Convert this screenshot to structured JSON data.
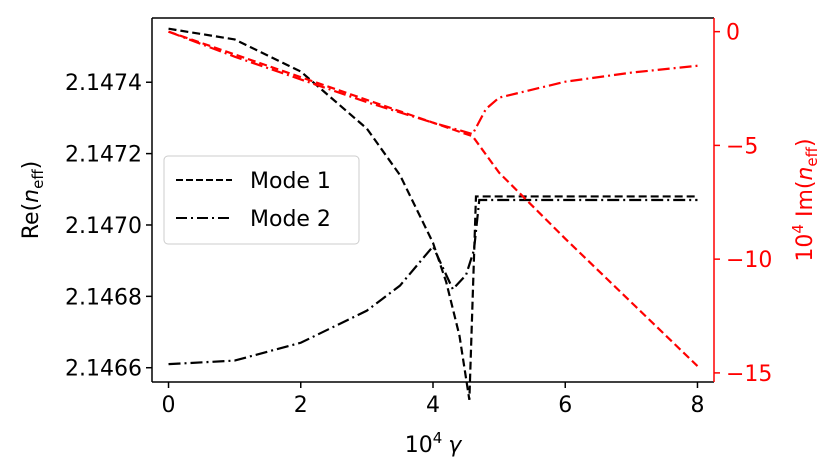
{
  "chart_data": {
    "type": "line",
    "x_axis": {
      "label_prefix": "10",
      "label_exp": "4",
      "label_symbol": "γ",
      "range": [
        -0.25,
        8.25
      ],
      "ticks": [
        0,
        2,
        4,
        6,
        8
      ],
      "tick_labels": [
        "0",
        "2",
        "4",
        "6",
        "8"
      ]
    },
    "y_left": {
      "label_base": "Re(",
      "label_var": "n",
      "label_sub": "eff",
      "label_close": ")",
      "range": [
        2.14656,
        2.14758
      ],
      "ticks": [
        2.1466,
        2.1468,
        2.147,
        2.1472,
        2.1474
      ],
      "tick_labels": [
        "2.1466",
        "2.1468",
        "2.1470",
        "2.1472",
        "2.1474"
      ],
      "color": "#000000"
    },
    "y_right": {
      "label_prefix": "10",
      "label_exp": "4",
      "label_mid": " Im(",
      "label_var": "n",
      "label_sub": "eff",
      "label_close": ")",
      "range": [
        -15.4,
        0.6
      ],
      "ticks": [
        0,
        -5,
        -10,
        -15
      ],
      "tick_labels": [
        "0",
        "−5",
        "−10",
        "−15"
      ],
      "color": "#ff0000"
    },
    "legend": {
      "placement": "center-left",
      "entries": [
        {
          "label": "Mode 1",
          "style": "dashed"
        },
        {
          "label": "Mode 2",
          "style": "dashdot"
        }
      ]
    },
    "series": [
      {
        "name": "Mode 1",
        "axis": "left",
        "color": "#000000",
        "style": "dashed",
        "x": [
          0,
          1,
          2,
          3,
          3.5,
          4,
          4.2,
          4.4,
          4.55,
          4.65,
          5,
          6,
          7,
          8
        ],
        "y": [
          2.14755,
          2.14752,
          2.14743,
          2.14727,
          2.14714,
          2.14695,
          2.14684,
          2.14669,
          2.14651,
          2.14708,
          2.14708,
          2.14708,
          2.14708,
          2.14708
        ]
      },
      {
        "name": "Mode 2",
        "axis": "left",
        "color": "#000000",
        "style": "dashdot",
        "x": [
          0,
          1,
          2,
          3,
          3.5,
          4,
          4.3,
          4.5,
          4.62,
          4.7,
          5,
          6,
          7,
          8
        ],
        "y": [
          2.14661,
          2.14662,
          2.14667,
          2.14676,
          2.14683,
          2.14694,
          2.14682,
          2.14686,
          2.14693,
          2.14707,
          2.14707,
          2.14707,
          2.14707,
          2.14707
        ]
      },
      {
        "name": "",
        "axis": "right",
        "color": "#ff0000",
        "style": "dashed",
        "x": [
          0,
          1,
          2,
          3,
          4,
          4.6,
          5,
          6,
          7,
          8
        ],
        "y": [
          0,
          -1.0,
          -2.0,
          -3.0,
          -4.0,
          -4.6,
          -6.2,
          -9.1,
          -11.9,
          -14.7
        ]
      },
      {
        "name": "",
        "axis": "right",
        "color": "#ff0000",
        "style": "dashdot",
        "x": [
          0,
          1,
          2,
          3,
          4,
          4.6,
          4.8,
          5,
          6,
          7,
          8
        ],
        "y": [
          0,
          -1.1,
          -2.1,
          -3.1,
          -4.0,
          -4.5,
          -3.4,
          -2.9,
          -2.2,
          -1.8,
          -1.5
        ]
      }
    ]
  }
}
